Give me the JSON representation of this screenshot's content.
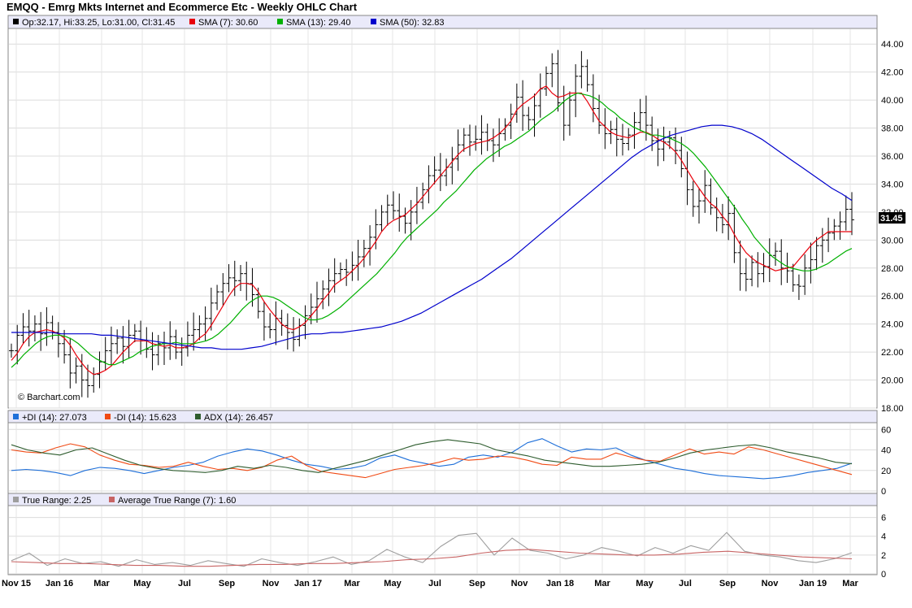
{
  "title": "EMQQ - Emrg Mkts Internet and Ecommerce Etc - Weekly OHLC Chart",
  "watermark": "© Barchart.com",
  "price_panel": {
    "legend": [
      {
        "label": "Op:32.17, Hi:33.25, Lo:31.00, Cl:31.45",
        "color": "#000000"
      },
      {
        "label": "SMA (7): 30.60",
        "color": "#e8000b"
      },
      {
        "label": "SMA (13): 29.40",
        "color": "#00b000"
      },
      {
        "label": "SMA (50): 32.83",
        "color": "#0000cc"
      }
    ],
    "last_price_label": "31.45"
  },
  "dmi_panel": {
    "legend": [
      {
        "label": "+DI (14): 27.073",
        "color": "#1e6fd9"
      },
      {
        "label": "-DI (14): 15.623",
        "color": "#f04a14"
      },
      {
        "label": "ADX (14): 26.457",
        "color": "#2e5c2e"
      }
    ]
  },
  "atr_panel": {
    "legend": [
      {
        "label": "True Range: 2.25",
        "color": "#9e9e9e"
      },
      {
        "label": "Average True Range (7): 1.60",
        "color": "#c86464"
      }
    ]
  },
  "chart_data": {
    "type": "line",
    "title": "EMQQ - Emrg Mkts Internet and Ecommerce Etc - Weekly OHLC Chart",
    "x_tick_labels": [
      "Nov 15",
      "Jan 16",
      "Mar",
      "May",
      "Jul",
      "Sep",
      "Nov",
      "Jan 17",
      "Mar",
      "May",
      "Jul",
      "Sep",
      "Nov",
      "Jan 18",
      "Mar",
      "May",
      "Jul",
      "Sep",
      "Nov",
      "Jan 19",
      "Mar"
    ],
    "price_y_ticks": [
      "18.00",
      "20.00",
      "22.00",
      "24.00",
      "26.00",
      "28.00",
      "30.00",
      "32.00",
      "34.00",
      "36.00",
      "38.00",
      "40.00",
      "42.00",
      "44.00"
    ],
    "price_ylim": [
      18,
      45
    ],
    "dmi_y_ticks": [
      "0",
      "20",
      "40",
      "60"
    ],
    "dmi_ylim": [
      0,
      65
    ],
    "atr_y_ticks": [
      "0",
      "2",
      "4",
      "6"
    ],
    "atr_ylim": [
      0,
      7
    ],
    "grid": true,
    "price_series": [
      {
        "name": "Close (weekly OHLC)",
        "color": "#000000",
        "values": [
          22.1,
          23.2,
          23.8,
          23.5,
          24.0,
          23.3,
          24.1,
          23.4,
          22.6,
          21.8,
          20.5,
          21.0,
          20.0,
          19.6,
          20.4,
          21.3,
          22.1,
          22.6,
          23.0,
          22.4,
          23.2,
          23.5,
          22.8,
          22.2,
          21.8,
          22.6,
          22.3,
          23.1,
          22.0,
          22.3,
          23.2,
          23.6,
          24.0,
          24.4,
          25.5,
          26.3,
          26.9,
          27.3,
          27.1,
          27.6,
          26.9,
          26.1,
          24.9,
          23.8,
          23.6,
          24.4,
          23.9,
          23.4,
          22.9,
          23.9,
          24.6,
          25.2,
          25.8,
          26.5,
          27.1,
          27.6,
          27.9,
          27.7,
          28.2,
          28.8,
          29.4,
          30.2,
          31.1,
          32.0,
          32.5,
          32.1,
          31.7,
          31.2,
          32.0,
          32.7,
          33.6,
          34.6,
          35.0,
          34.6,
          35.2,
          35.8,
          36.8,
          37.5,
          37.0,
          37.2,
          37.7,
          37.1,
          36.8,
          37.6,
          38.2,
          39.0,
          40.2,
          38.9,
          38.6,
          39.6,
          40.8,
          41.9,
          42.6,
          39.8,
          38.2,
          40.0,
          41.7,
          42.4,
          41.1,
          39.4,
          38.2,
          37.6,
          37.9,
          37.2,
          36.9,
          37.5,
          38.4,
          39.1,
          38.2,
          37.1,
          36.5,
          37.0,
          37.3,
          36.4,
          35.1,
          33.6,
          32.4,
          32.8,
          33.9,
          32.3,
          31.6,
          31.1,
          31.9,
          29.1,
          27.6,
          27.2,
          28.4,
          27.6,
          28.1,
          28.9,
          29.2,
          28.0,
          27.8,
          26.8,
          26.7,
          28.0,
          28.6,
          29.6,
          30.0,
          30.5,
          31.0,
          31.3,
          32.2,
          31.45
        ]
      },
      {
        "name": "SMA (7)",
        "color": "#e8000b",
        "values": [
          21.4,
          21.9,
          22.6,
          23.1,
          23.4,
          23.5,
          23.6,
          23.5,
          23.3,
          23.0,
          22.5,
          21.8,
          21.2,
          20.7,
          20.4,
          20.5,
          20.7,
          21.0,
          21.5,
          22.0,
          22.4,
          22.8,
          22.8,
          22.8,
          22.6,
          22.5,
          22.4,
          22.5,
          22.3,
          22.3,
          22.4,
          22.6,
          23.0,
          23.3,
          23.9,
          24.6,
          25.3,
          26.0,
          26.6,
          26.9,
          26.9,
          26.8,
          26.3,
          25.6,
          25.0,
          24.5,
          24.0,
          23.7,
          23.6,
          23.8,
          24.1,
          24.6,
          25.1,
          25.7,
          26.2,
          26.8,
          27.1,
          27.4,
          27.8,
          28.2,
          28.7,
          29.3,
          29.9,
          30.6,
          31.1,
          31.4,
          31.6,
          31.8,
          32.2,
          32.6,
          33.1,
          33.6,
          34.1,
          34.6,
          35.1,
          35.6,
          36.1,
          36.5,
          36.7,
          36.9,
          37.0,
          37.1,
          37.3,
          37.6,
          38.0,
          38.5,
          39.3,
          39.7,
          40.0,
          40.3,
          40.8,
          41.0,
          40.5,
          40.2,
          40.3,
          40.5,
          40.5,
          40.5,
          39.9,
          39.2,
          38.5,
          38.1,
          37.7,
          37.5,
          37.4,
          37.3,
          37.5,
          37.7,
          37.7,
          37.5,
          37.2,
          37.0,
          36.7,
          36.3,
          35.7,
          35.0,
          34.3,
          33.7,
          33.1,
          32.6,
          32.3,
          31.7,
          31.2,
          30.4,
          29.7,
          29.1,
          28.7,
          28.4,
          28.2,
          28.0,
          27.8,
          27.9,
          28.0,
          28.1,
          28.6,
          29.1,
          29.6,
          30.0,
          30.3,
          30.6,
          30.6,
          30.6,
          30.6,
          30.6
        ]
      },
      {
        "name": "SMA (13)",
        "color": "#00b000",
        "values": [
          20.9,
          21.3,
          21.8,
          22.2,
          22.6,
          22.9,
          23.1,
          23.2,
          23.2,
          23.1,
          22.9,
          22.6,
          22.2,
          21.8,
          21.5,
          21.3,
          21.1,
          21.1,
          21.3,
          21.5,
          21.7,
          22.0,
          22.2,
          22.4,
          22.5,
          22.6,
          22.6,
          22.7,
          22.6,
          22.6,
          22.6,
          22.7,
          22.8,
          23.0,
          23.3,
          23.7,
          24.1,
          24.6,
          25.1,
          25.5,
          25.8,
          26.0,
          26.0,
          25.9,
          25.7,
          25.4,
          25.1,
          24.8,
          24.5,
          24.3,
          24.3,
          24.4,
          24.6,
          24.9,
          25.2,
          25.6,
          26.0,
          26.4,
          26.8,
          27.2,
          27.6,
          28.1,
          28.6,
          29.1,
          29.7,
          30.2,
          30.6,
          31.0,
          31.4,
          31.8,
          32.2,
          32.7,
          33.1,
          33.5,
          34.0,
          34.5,
          35.0,
          35.4,
          35.8,
          36.1,
          36.4,
          36.7,
          36.9,
          37.2,
          37.5,
          37.8,
          38.2,
          38.6,
          38.9,
          39.2,
          39.6,
          40.0,
          40.3,
          40.5,
          40.4,
          40.3,
          40.1,
          39.8,
          39.4,
          39.1,
          38.7,
          38.4,
          38.1,
          37.9,
          37.7,
          37.5,
          37.5,
          37.4,
          37.3,
          37.1,
          36.9,
          36.6,
          36.2,
          35.7,
          35.2,
          34.6,
          34.0,
          33.4,
          32.8,
          32.2,
          31.5,
          30.9,
          30.2,
          29.7,
          29.2,
          28.8,
          28.5,
          28.2,
          28.0,
          27.9,
          27.8,
          27.8,
          27.9,
          28.1,
          28.3,
          28.6,
          28.9,
          29.2,
          29.4
        ]
      },
      {
        "name": "SMA (50)",
        "color": "#0000cc",
        "values": [
          23.4,
          23.4,
          23.4,
          23.4,
          23.4,
          23.3,
          23.3,
          23.3,
          23.3,
          23.2,
          23.2,
          23.1,
          23.0,
          22.9,
          22.8,
          22.7,
          22.6,
          22.5,
          22.4,
          22.3,
          22.3,
          22.2,
          22.2,
          22.2,
          22.3,
          22.4,
          22.6,
          22.8,
          23.0,
          23.2,
          23.3,
          23.3,
          23.4,
          23.4,
          23.5,
          23.6,
          23.7,
          23.8,
          24.0,
          24.2,
          24.5,
          24.8,
          25.2,
          25.6,
          26.0,
          26.4,
          26.8,
          27.2,
          27.7,
          28.2,
          28.7,
          29.3,
          29.9,
          30.5,
          31.1,
          31.7,
          32.3,
          32.9,
          33.5,
          34.1,
          34.7,
          35.3,
          35.9,
          36.4,
          36.8,
          37.2,
          37.5,
          37.7,
          37.9,
          38.1,
          38.2,
          38.2,
          38.1,
          37.9,
          37.6,
          37.2,
          36.7,
          36.2,
          35.7,
          35.2,
          34.7,
          34.2,
          33.7,
          33.3,
          32.83
        ]
      }
    ],
    "dmi_series": [
      {
        "name": "+DI (14)",
        "color": "#1e6fd9",
        "values": [
          20,
          21,
          20,
          18,
          15,
          20,
          23,
          22,
          20,
          17,
          20,
          23,
          25,
          28,
          34,
          38,
          41,
          39,
          35,
          30,
          26,
          24,
          21,
          22,
          25,
          32,
          35,
          30,
          27,
          24,
          26,
          33,
          35,
          33,
          38,
          47,
          51,
          44,
          38,
          41,
          40,
          42,
          35,
          30,
          26,
          22,
          20,
          17,
          15,
          14,
          13,
          12,
          13,
          15,
          18,
          20,
          22,
          27
        ]
      },
      {
        "name": "-DI (14)",
        "color": "#f04a14",
        "values": [
          40,
          38,
          37,
          42,
          46,
          43,
          35,
          30,
          26,
          25,
          23,
          24,
          28,
          24,
          21,
          22,
          20,
          23,
          30,
          34,
          25,
          19,
          17,
          15,
          13,
          17,
          21,
          23,
          25,
          28,
          32,
          30,
          31,
          34,
          33,
          30,
          26,
          25,
          33,
          31,
          31,
          37,
          33,
          30,
          29,
          35,
          41,
          36,
          38,
          36,
          43,
          40,
          36,
          32,
          28,
          24,
          20,
          16
        ]
      },
      {
        "name": "ADX (14)",
        "color": "#2e5c2e",
        "values": [
          45,
          40,
          37,
          35,
          40,
          42,
          36,
          30,
          25,
          22,
          20,
          19,
          18,
          20,
          24,
          22,
          25,
          23,
          20,
          18,
          22,
          26,
          30,
          35,
          40,
          45,
          48,
          50,
          48,
          46,
          40,
          37,
          34,
          30,
          28,
          26,
          24,
          24,
          25,
          26,
          28,
          32,
          37,
          40,
          42,
          44,
          45,
          42,
          38,
          35,
          32,
          28,
          26.46
        ]
      }
    ],
    "atr_series": [
      {
        "name": "True Range",
        "color": "#9e9e9e",
        "values": [
          1.4,
          2.2,
          0.9,
          1.6,
          1.1,
          1.3,
          0.8,
          1.5,
          1.0,
          1.2,
          0.9,
          1.4,
          1.1,
          0.8,
          1.6,
          1.2,
          0.9,
          1.3,
          1.8,
          1.0,
          1.4,
          2.6,
          1.8,
          1.2,
          2.9,
          4.1,
          4.3,
          2.0,
          3.8,
          2.5,
          2.2,
          1.6,
          2.0,
          2.8,
          2.4,
          1.9,
          2.8,
          2.2,
          3.0,
          2.5,
          4.4,
          2.4,
          2.0,
          1.8,
          1.4,
          1.2,
          1.6,
          2.25
        ]
      },
      {
        "name": "Average True Range (7)",
        "color": "#c86464",
        "values": [
          1.3,
          1.2,
          1.1,
          1.1,
          1.0,
          0.9,
          0.9,
          0.8,
          0.8,
          0.9,
          1.0,
          1.0,
          1.1,
          1.1,
          1.2,
          1.3,
          1.5,
          1.6,
          1.8,
          2.2,
          2.5,
          2.6,
          2.4,
          2.2,
          2.1,
          2.0,
          2.0,
          2.1,
          2.3,
          2.4,
          2.2,
          2.0,
          1.8,
          1.7,
          1.6
        ]
      }
    ]
  }
}
